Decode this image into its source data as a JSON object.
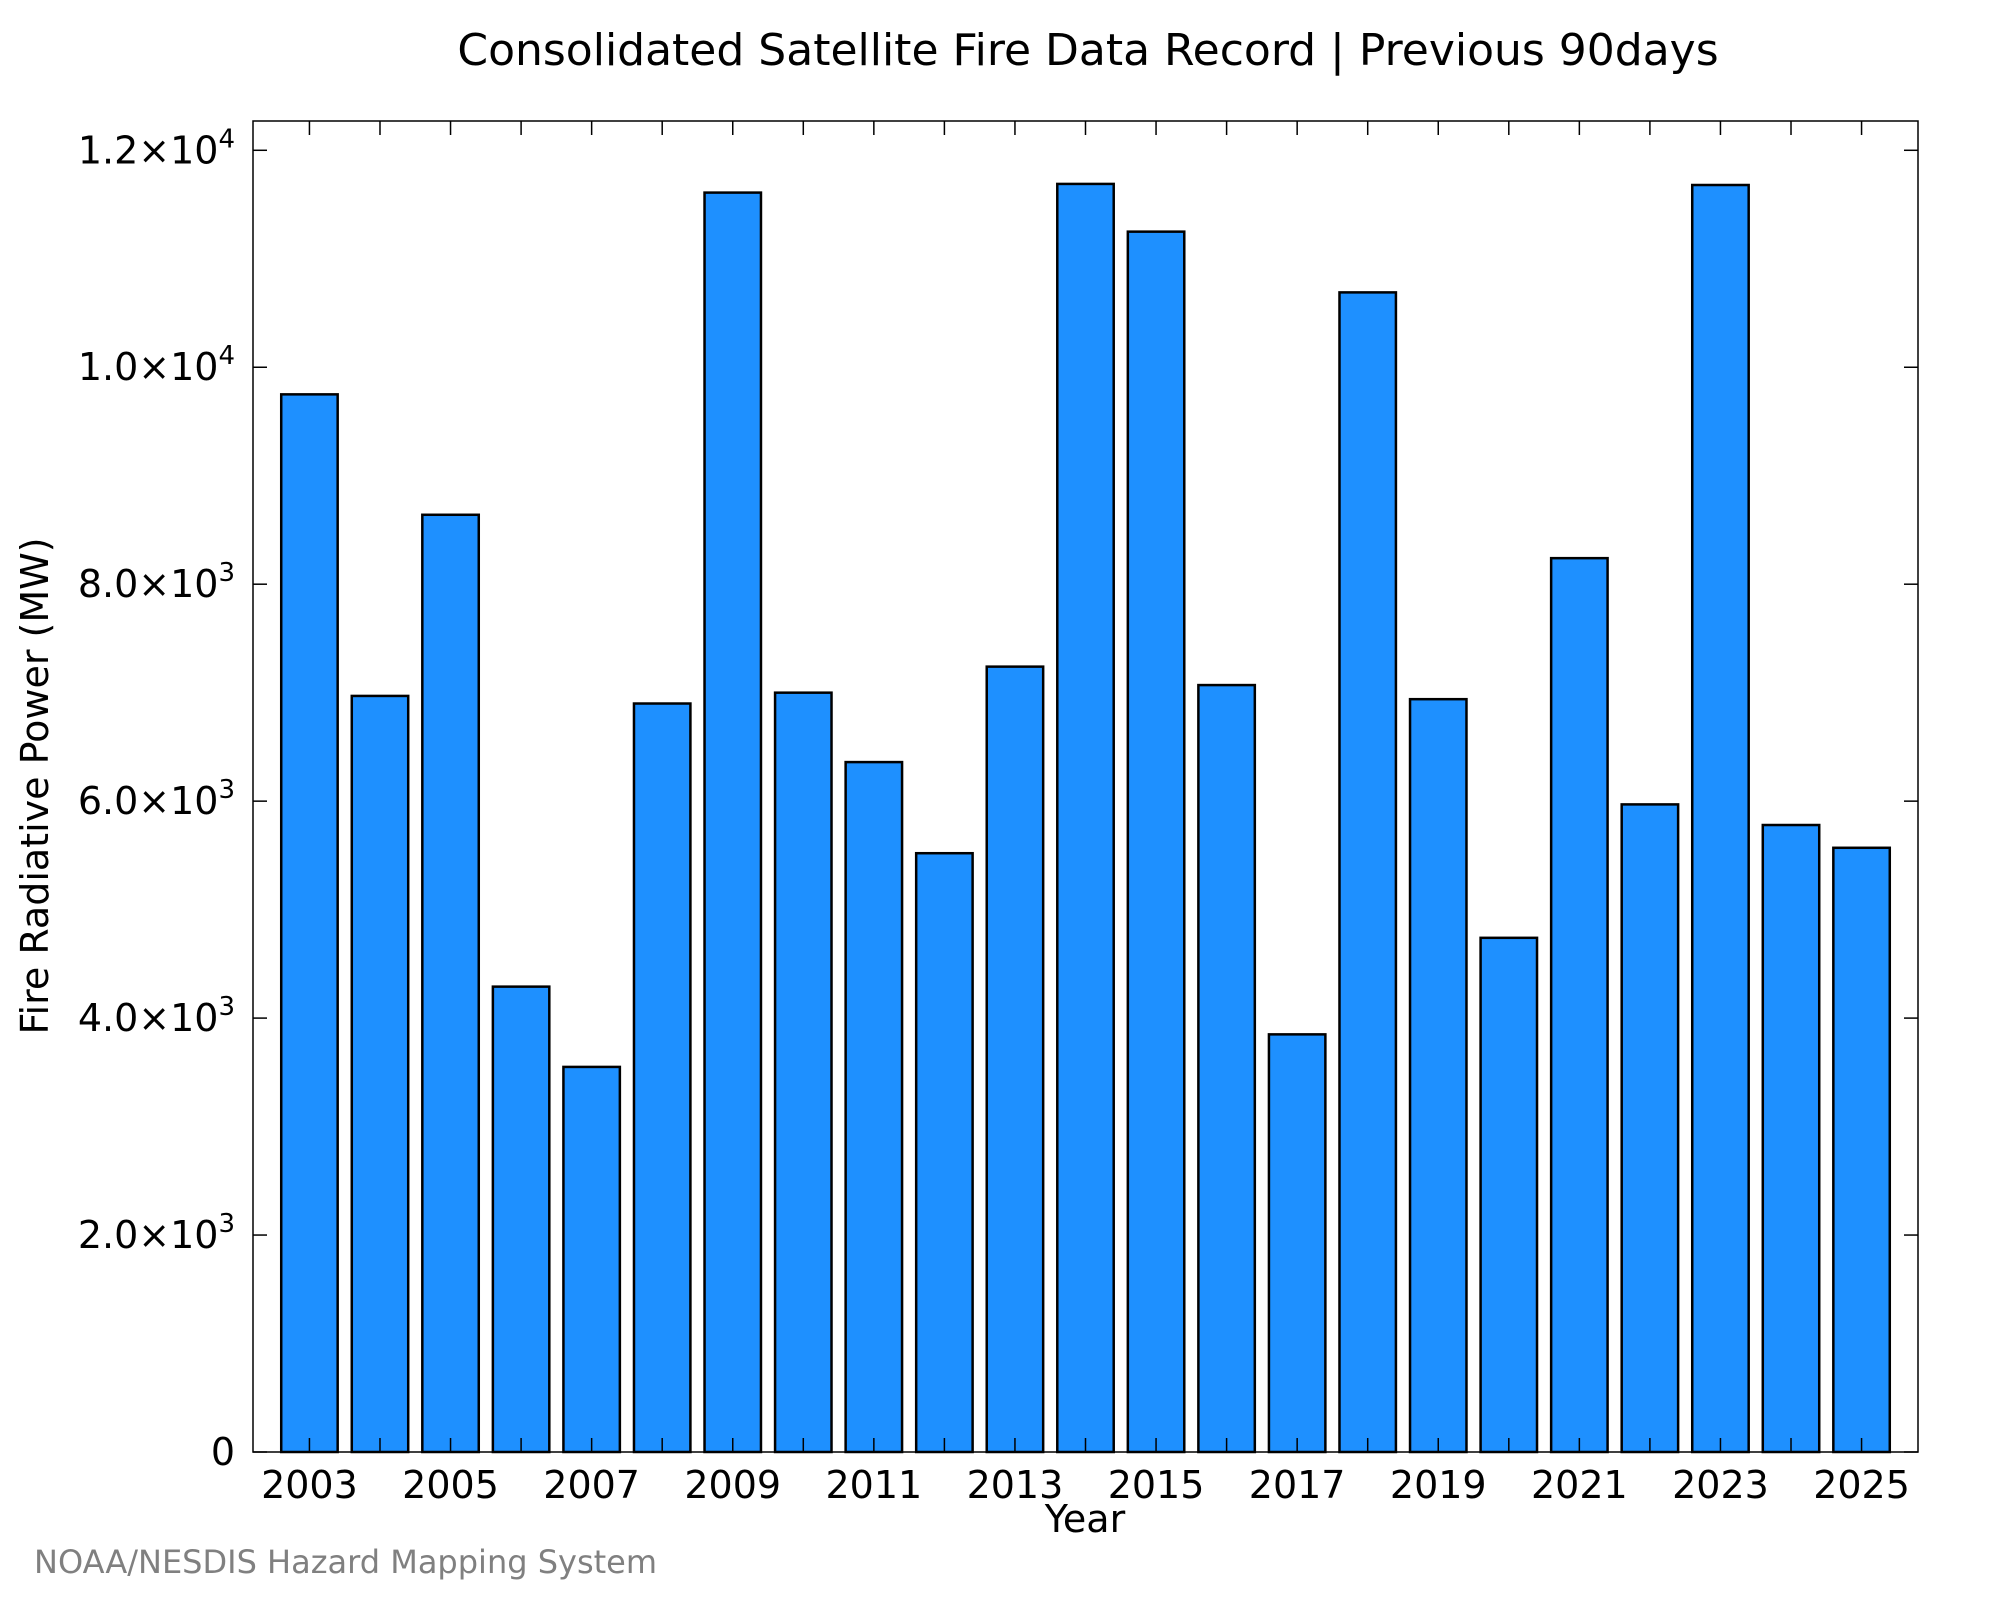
{
  "chart_data": {
    "type": "bar",
    "title": "Consolidated Satellite Fire Data Record | Previous 90days",
    "xlabel": "Year",
    "ylabel": "Fire Radiative Power (MW)",
    "ylim": [
      0,
      12270
    ],
    "xlim": [
      2002.2,
      2025.8
    ],
    "categories": [
      2003,
      2004,
      2005,
      2006,
      2007,
      2008,
      2009,
      2010,
      2011,
      2012,
      2013,
      2014,
      2015,
      2016,
      2017,
      2018,
      2019,
      2020,
      2021,
      2022,
      2023,
      2024,
      2025
    ],
    "values": [
      9750,
      6970,
      8640,
      4290,
      3550,
      6900,
      11610,
      7000,
      6360,
      5520,
      7240,
      11690,
      11250,
      7070,
      3850,
      10690,
      6940,
      4740,
      8240,
      5970,
      11680,
      5780,
      5570
    ],
    "y_ticks": [
      {
        "value": 0,
        "mantissa": "0",
        "exponent": ""
      },
      {
        "value": 2000,
        "mantissa": "2.0×10",
        "exponent": "3"
      },
      {
        "value": 4000,
        "mantissa": "4.0×10",
        "exponent": "3"
      },
      {
        "value": 6000,
        "mantissa": "6.0×10",
        "exponent": "3"
      },
      {
        "value": 8000,
        "mantissa": "8.0×10",
        "exponent": "3"
      },
      {
        "value": 10000,
        "mantissa": "1.0×10",
        "exponent": "4"
      },
      {
        "value": 12000,
        "mantissa": "1.2×10",
        "exponent": "4"
      }
    ],
    "x_ticks": [
      2003,
      2005,
      2007,
      2009,
      2011,
      2013,
      2015,
      2017,
      2019,
      2021,
      2023,
      2025
    ],
    "bar_color": "#1e90ff",
    "bar_edge_color": "#000000",
    "grid": false,
    "legend": "none",
    "credit": "NOAA/NESDIS Hazard Mapping System"
  }
}
